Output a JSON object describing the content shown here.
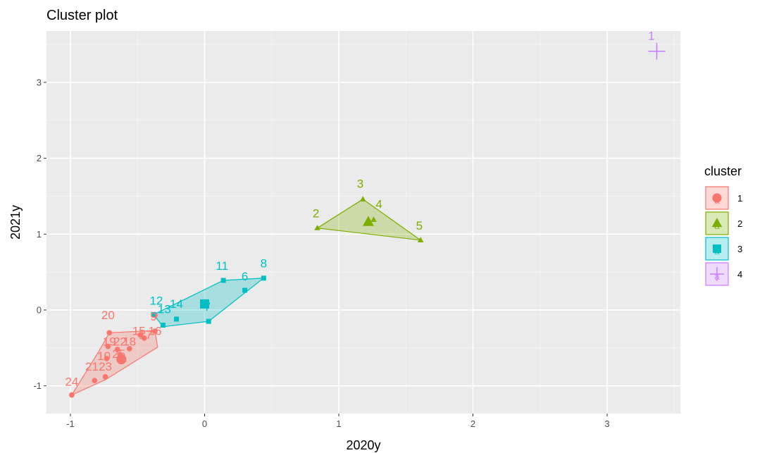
{
  "chart_data": {
    "type": "scatter",
    "title": "Cluster plot",
    "xlabel": "2020y",
    "ylabel": "2021y",
    "xlim": [
      -1.14,
      3.5
    ],
    "ylim": [
      -1.34,
      3.74
    ],
    "xticks": [
      -1,
      0,
      1,
      2,
      3
    ],
    "yticks": [
      -1,
      0,
      1,
      2,
      3
    ],
    "grid": true,
    "legend": {
      "title": "cluster",
      "position": "right"
    },
    "clusters": [
      {
        "name": "1",
        "color": "#F8766D",
        "shape": "circle",
        "points": [
          {
            "label": "9",
            "x": -0.37,
            "y": -0.07
          },
          {
            "label": "20",
            "x": -0.71,
            "y": -0.3
          },
          {
            "label": "15",
            "x": -0.48,
            "y": -0.33
          },
          {
            "label": "17",
            "x": -0.45,
            "y": -0.37
          },
          {
            "label": "16",
            "x": -0.37,
            "y": -0.28
          },
          {
            "label": "19",
            "x": -0.72,
            "y": -0.48
          },
          {
            "label": "22",
            "x": -0.65,
            "y": -0.52
          },
          {
            "label": "18",
            "x": -0.56,
            "y": -0.51
          },
          {
            "label": "10",
            "x": -0.73,
            "y": -0.64
          },
          {
            "label": "25",
            "x": -0.63,
            "y": -0.59
          },
          {
            "label": "21",
            "x": -0.82,
            "y": -0.93
          },
          {
            "label": "23",
            "x": -0.74,
            "y": -0.88
          },
          {
            "label": "24",
            "x": -0.99,
            "y": -1.12
          }
        ],
        "hull": [
          [
            -0.99,
            -1.12
          ],
          [
            -0.74,
            -0.92
          ],
          [
            -0.35,
            -0.49
          ],
          [
            -0.37,
            -0.27
          ],
          [
            -0.71,
            -0.3
          ],
          [
            -0.79,
            -0.55
          ]
        ],
        "center": {
          "x": -0.62,
          "y": -0.65
        }
      },
      {
        "name": "2",
        "color": "#7CAE00",
        "shape": "triangle",
        "points": [
          {
            "label": "3",
            "x": 1.18,
            "y": 1.46
          },
          {
            "label": "4",
            "x": 1.26,
            "y": 1.19
          },
          {
            "label": "2",
            "x": 0.84,
            "y": 1.08
          },
          {
            "label": "5",
            "x": 1.61,
            "y": 0.92
          }
        ],
        "hull": [
          [
            0.84,
            1.08
          ],
          [
            1.18,
            1.46
          ],
          [
            1.61,
            0.92
          ]
        ],
        "center": {
          "x": 1.22,
          "y": 1.16
        }
      },
      {
        "name": "3",
        "color": "#00BFC4",
        "shape": "square",
        "points": [
          {
            "label": "8",
            "x": 0.44,
            "y": 0.42
          },
          {
            "label": "11",
            "x": 0.14,
            "y": 0.39
          },
          {
            "label": "6",
            "x": 0.3,
            "y": 0.26
          },
          {
            "label": "12",
            "x": -0.38,
            "y": -0.06
          },
          {
            "label": "13",
            "x": -0.31,
            "y": -0.2
          },
          {
            "label": "14",
            "x": -0.21,
            "y": -0.12
          },
          {
            "label": "7",
            "x": 0.03,
            "y": -0.15
          }
        ],
        "hull": [
          [
            0.44,
            0.42
          ],
          [
            0.14,
            0.39
          ],
          [
            -0.38,
            -0.06
          ],
          [
            -0.31,
            -0.22
          ],
          [
            0.03,
            -0.15
          ]
        ],
        "center": {
          "x": 0.0,
          "y": 0.08
        }
      },
      {
        "name": "4",
        "color": "#C77CFF",
        "shape": "plus",
        "points": [
          {
            "label": "1",
            "x": 3.37,
            "y": 3.41
          }
        ],
        "hull": [],
        "center": {
          "x": 3.37,
          "y": 3.41
        }
      }
    ],
    "labels": [
      {
        "text": "1",
        "cluster": 3,
        "x": 3.33,
        "y": 3.56
      },
      {
        "text": "3",
        "cluster": 1,
        "x": 1.16,
        "y": 1.61
      },
      {
        "text": "4",
        "cluster": 1,
        "x": 1.3,
        "y": 1.34
      },
      {
        "text": "2",
        "cluster": 1,
        "x": 0.83,
        "y": 1.22
      },
      {
        "text": "5",
        "cluster": 1,
        "x": 1.6,
        "y": 1.06
      },
      {
        "text": "11",
        "cluster": 2,
        "x": 0.13,
        "y": 0.53
      },
      {
        "text": "8",
        "cluster": 2,
        "x": 0.44,
        "y": 0.56
      },
      {
        "text": "6",
        "cluster": 2,
        "x": 0.3,
        "y": 0.39
      },
      {
        "text": "12",
        "cluster": 2,
        "x": -0.36,
        "y": 0.07
      },
      {
        "text": "14",
        "cluster": 2,
        "x": -0.21,
        "y": 0.03
      },
      {
        "text": "13",
        "cluster": 2,
        "x": -0.3,
        "y": -0.04
      },
      {
        "text": "7",
        "cluster": 2,
        "x": 0.02,
        "y": -0.01
      },
      {
        "text": "20",
        "cluster": 0,
        "x": -0.72,
        "y": -0.12
      },
      {
        "text": "9",
        "cluster": 0,
        "x": -0.38,
        "y": -0.14
      },
      {
        "text": "15",
        "cluster": 0,
        "x": -0.49,
        "y": -0.33
      },
      {
        "text": "17",
        "cluster": 0,
        "x": -0.44,
        "y": -0.38
      },
      {
        "text": "16",
        "cluster": 0,
        "x": -0.37,
        "y": -0.33
      },
      {
        "text": "19",
        "cluster": 0,
        "x": -0.71,
        "y": -0.47
      },
      {
        "text": "22",
        "cluster": 0,
        "x": -0.63,
        "y": -0.47
      },
      {
        "text": "18",
        "cluster": 0,
        "x": -0.56,
        "y": -0.47
      },
      {
        "text": "10",
        "cluster": 0,
        "x": -0.75,
        "y": -0.66
      },
      {
        "text": "25",
        "cluster": 0,
        "x": -0.64,
        "y": -0.63
      },
      {
        "text": "21",
        "cluster": 0,
        "x": -0.84,
        "y": -0.8
      },
      {
        "text": "23",
        "cluster": 0,
        "x": -0.74,
        "y": -0.8
      },
      {
        "text": "24",
        "cluster": 0,
        "x": -0.99,
        "y": -1.0
      }
    ]
  }
}
